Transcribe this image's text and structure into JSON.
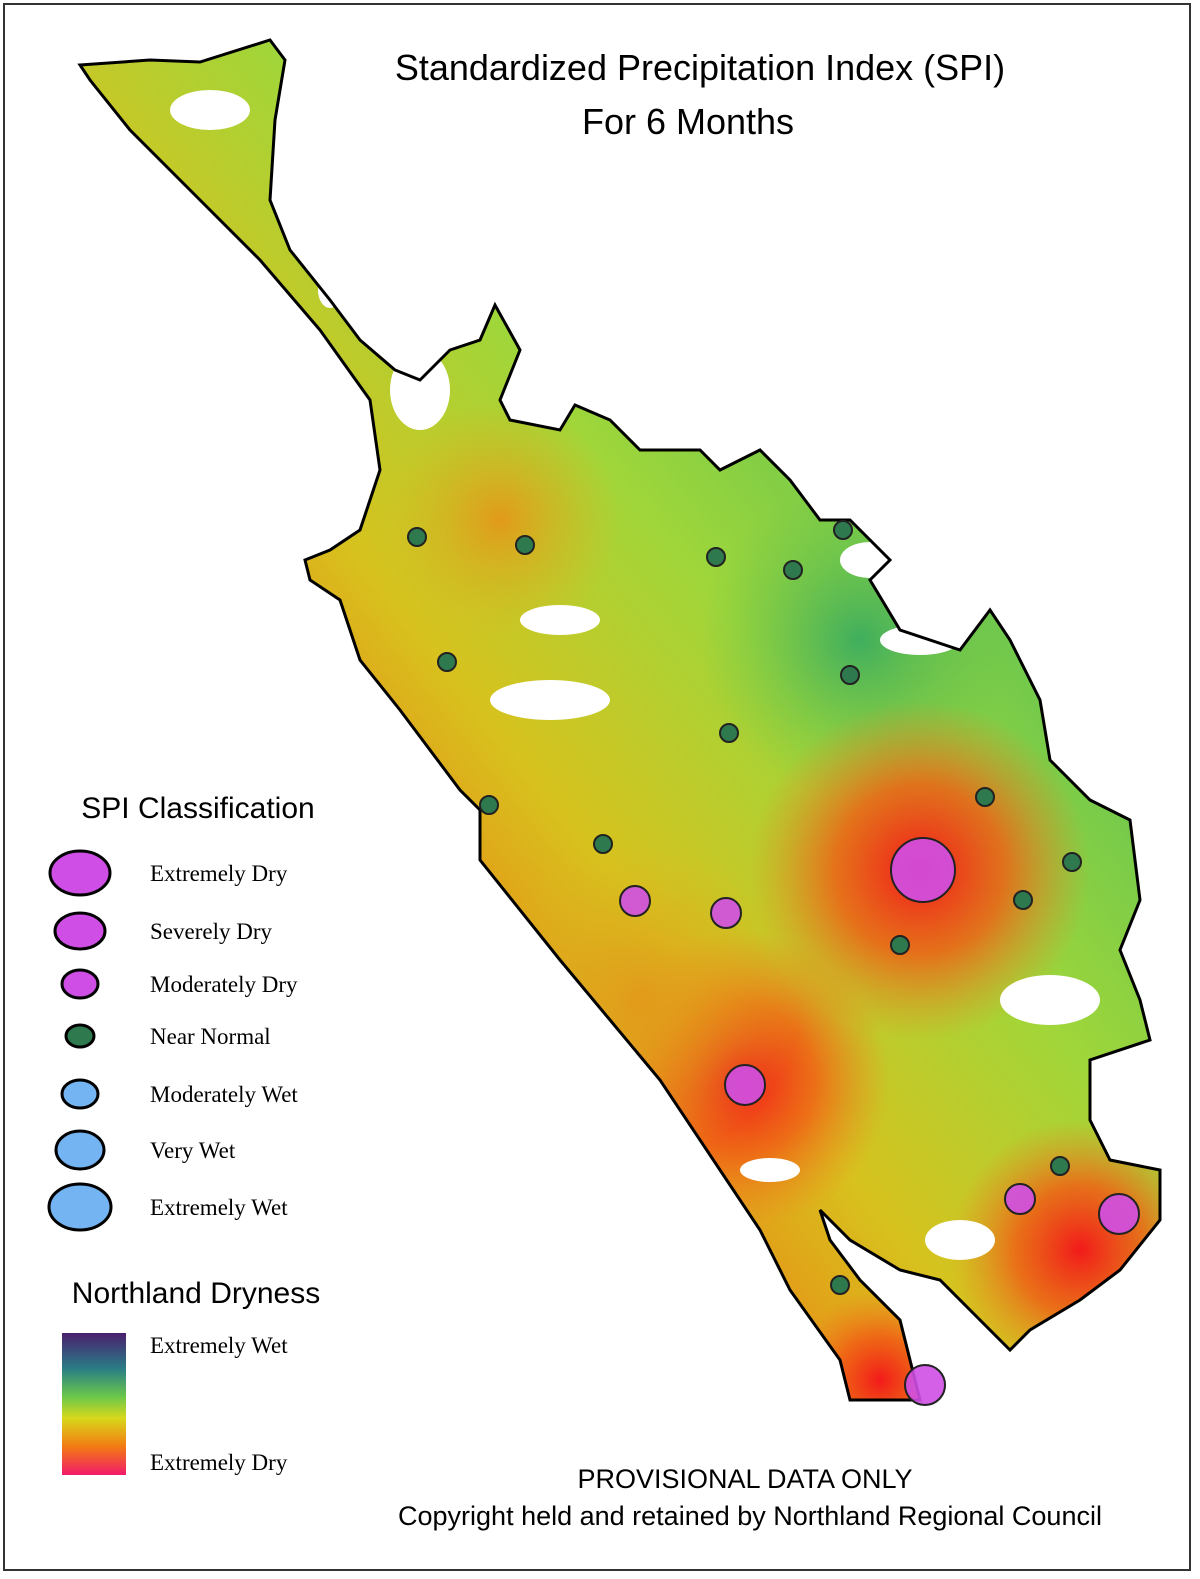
{
  "title": [
    "Standardized Precipitation Index (SPI)",
    "For 6 Months"
  ],
  "spi_legend": {
    "title": "SPI Classification",
    "items": [
      "Extremely Dry",
      "Severely Dry",
      "Moderately Dry",
      "Near Normal",
      "Moderately Wet",
      "Very Wet",
      "Extremely Wet"
    ]
  },
  "dryness_legend": {
    "title": "Northland Dryness",
    "top_label": "Extremely Wet",
    "bottom_label": "Extremely Dry"
  },
  "footer": [
    "PROVISIONAL DATA ONLY",
    "Copyright held and retained by Northland Regional Council"
  ]
}
